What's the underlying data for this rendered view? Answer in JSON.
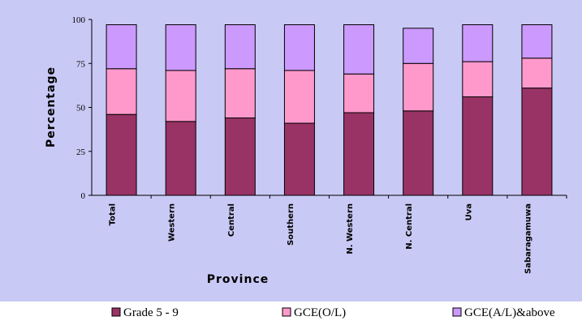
{
  "chart_data": {
    "type": "bar",
    "stacked": true,
    "categories": [
      "Total",
      "Western",
      "Central",
      "Southern",
      "N. Western",
      "N. Central",
      "Uva",
      "Sabaragamuwa"
    ],
    "series": [
      {
        "name": "Grade 5 - 9",
        "color": "#993366",
        "values": [
          46,
          42,
          44,
          41,
          47,
          48,
          56,
          61
        ]
      },
      {
        "name": "GCE(O/L)",
        "color": "#ff99cc",
        "values": [
          26,
          29,
          28,
          30,
          22,
          27,
          20,
          17
        ]
      },
      {
        "name": "GCE(A/L)&above",
        "color": "#cc99ff",
        "values": [
          25,
          26,
          25,
          26,
          28,
          20,
          21,
          19
        ]
      }
    ],
    "xlabel": "Province",
    "ylabel": "Percentage",
    "ylim": [
      0,
      100
    ],
    "yticks": [
      "0",
      "25",
      "50",
      "75",
      "100"
    ],
    "legend_position": "bottom",
    "grid": false
  }
}
